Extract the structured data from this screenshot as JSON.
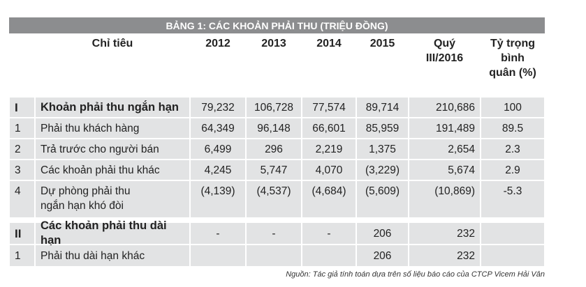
{
  "table": {
    "title": "BẢNG 1: CÁC KHOẢN PHẢI THU (TRIỆU ĐỒNG)",
    "header": [
      [
        "Chỉ tiêu"
      ],
      [
        "2012"
      ],
      [
        "2013"
      ],
      [
        "2014"
      ],
      [
        "2015"
      ],
      [
        "Quý",
        "III/2016"
      ],
      [
        "Tỷ trọng",
        "bình",
        "quân (%)"
      ]
    ],
    "rows": [
      {
        "bold": true,
        "cells": [
          "I",
          [
            "Khoản phải thu ngắn hạn"
          ],
          "79,232",
          "106,728",
          "77,574",
          "89,714",
          "210,686",
          "100"
        ]
      },
      {
        "bold": false,
        "cells": [
          "1",
          [
            "Phải thu khách hàng"
          ],
          "64,349",
          "96,148",
          "66,601",
          "85,959",
          "191,489",
          "89.5"
        ]
      },
      {
        "bold": false,
        "cells": [
          "2",
          [
            "Trả trước cho người bán"
          ],
          "6,499",
          "296",
          "2,219",
          "1,375",
          "2,654",
          "2.3"
        ]
      },
      {
        "bold": false,
        "cells": [
          "3",
          [
            "Các khoản phải thu khác"
          ],
          "4,245",
          "5,747",
          "4,070",
          "(3,229)",
          "5,674",
          "2.9"
        ]
      },
      {
        "bold": false,
        "cells": [
          "4",
          [
            "Dự phòng phải thu",
            "ngắn hạn khó đòi"
          ],
          "(4,139)",
          "(4,537)",
          "(4,684)",
          "(5,609)",
          "(10,869)",
          "-5.3"
        ]
      },
      {
        "bold": true,
        "cells": [
          "II",
          [
            "Các khoản phải thu dài hạn"
          ],
          "-",
          "-",
          "-",
          "206",
          "232",
          null
        ]
      },
      {
        "bold": false,
        "cells": [
          "1",
          [
            "Phải thu dài hạn khác"
          ],
          null,
          null,
          null,
          "206",
          "232",
          null
        ]
      }
    ],
    "source": "Nguồn: Tác giả tính toán dựa trên số liệu báo cáo của CTCP Vicem Hải Vân"
  }
}
